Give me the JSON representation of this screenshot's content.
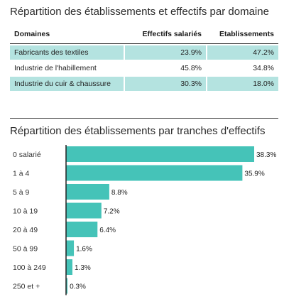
{
  "table": {
    "title": "Répartition des établissements et effectifs par domaine",
    "headers": [
      "Domaines",
      "Effectifs salariés",
      "Etablissements"
    ],
    "rows": [
      {
        "domain": "Fabricants des textiles",
        "effectifs": "23.9%",
        "etablissements": "47.2%",
        "shaded": true
      },
      {
        "domain": "Industrie de l'habillement",
        "effectifs": "45.8%",
        "etablissements": "34.8%",
        "shaded": false
      },
      {
        "domain": "Industrie du cuir & chaussure",
        "effectifs": "30.3%",
        "etablissements": "18.0%",
        "shaded": true
      }
    ]
  },
  "chart_title": "Répartition des établissements par tranches d'effectifs",
  "colors": {
    "bar": "#45c3b8",
    "row_shade": "#b4e3e0"
  },
  "chart_data": {
    "type": "bar",
    "orientation": "horizontal",
    "categories": [
      "0 salarié",
      "1 à 4",
      "5 à 9",
      "10 à 19",
      "20 à 49",
      "50 à 99",
      "100 à 249",
      "250 et +"
    ],
    "values": [
      38.3,
      35.9,
      8.8,
      7.2,
      6.4,
      1.6,
      1.3,
      0.3
    ],
    "value_labels": [
      "38.3%",
      "35.9%",
      "8.8%",
      "7.2%",
      "6.4%",
      "1.6%",
      "1.3%",
      "0.3%"
    ],
    "title": "Répartition des établissements par tranches d'effectifs",
    "xlim": [
      0,
      38.3
    ],
    "grid": false
  }
}
